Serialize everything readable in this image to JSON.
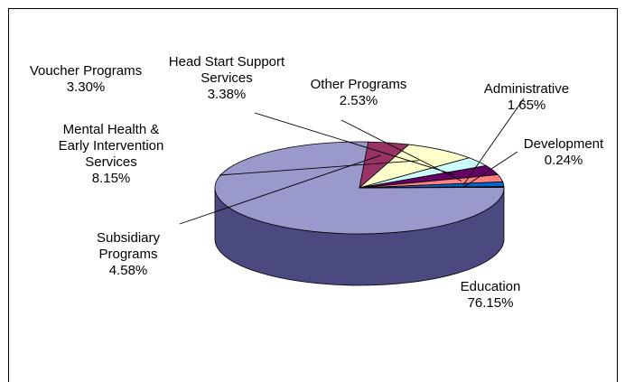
{
  "chart_data": {
    "type": "pie",
    "title": "",
    "slices": [
      {
        "label": [
          "Education"
        ],
        "value": 76.15,
        "value_text": "76.15%",
        "color": "#9999CC",
        "side_color": "#4A4A80"
      },
      {
        "label": [
          "Subsidiary",
          "Programs"
        ],
        "value": 4.58,
        "value_text": "4.58%",
        "color": "#993366",
        "side_color": "#5C1F3D"
      },
      {
        "label": [
          "Mental Health &",
          "Early Intervention",
          "Services"
        ],
        "value": 8.15,
        "value_text": "8.15%",
        "color": "#FFFFCC",
        "side_color": "#B3B38F"
      },
      {
        "label": [
          "Voucher Programs"
        ],
        "value": 3.3,
        "value_text": "3.30%",
        "color": "#CCFFFF",
        "side_color": "#8FB3B3"
      },
      {
        "label": [
          "Head Start Support",
          "Services"
        ],
        "value": 3.38,
        "value_text": "3.38%",
        "color": "#660066",
        "side_color": "#3D003D"
      },
      {
        "label": [
          "Other Programs"
        ],
        "value": 2.53,
        "value_text": "2.53%",
        "color": "#FF8080",
        "side_color": "#B35959"
      },
      {
        "label": [
          "Administrative"
        ],
        "value": 1.65,
        "value_text": "1.65%",
        "color": "#0066CC",
        "side_color": "#003D7A"
      },
      {
        "label": [
          "Development"
        ],
        "value": 0.24,
        "value_text": "0.24%",
        "color": "#CCCCFF",
        "side_color": "#8F8FB3"
      }
    ]
  }
}
